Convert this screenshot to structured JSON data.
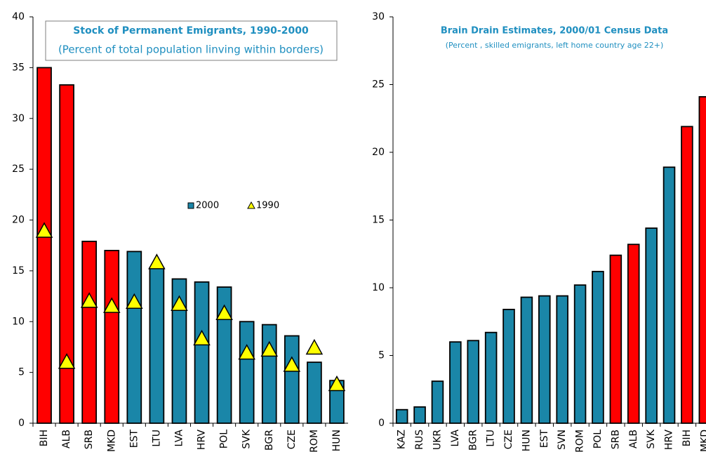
{
  "chart_data": [
    {
      "type": "bar",
      "title": "Stock of Permanent Emigrants, 1990-2000",
      "subtitle": "(Percent of total population linving within borders)",
      "categories": [
        "BIH",
        "ALB",
        "SRB",
        "MKD",
        "EST",
        "LTU",
        "LVA",
        "HRV",
        "POL",
        "SVK",
        "BGR",
        "CZE",
        "ROM",
        "HUN"
      ],
      "series": [
        {
          "name": "2000",
          "color": "#1a86a8",
          "colors": [
            "#ff0000",
            "#ff0000",
            "#ff0000",
            "#ff0000",
            "#1a86a8",
            "#1a86a8",
            "#1a86a8",
            "#1a86a8",
            "#1a86a8",
            "#1a86a8",
            "#1a86a8",
            "#1a86a8",
            "#1a86a8",
            "#1a86a8"
          ],
          "values": [
            35,
            33.3,
            17.9,
            17,
            16.9,
            15.3,
            14.2,
            13.9,
            13.4,
            10,
            9.7,
            8.6,
            6,
            4.2
          ]
        },
        {
          "name": "1990",
          "marker": "triangle",
          "color": "#ffff00",
          "values": [
            19,
            6.1,
            12.1,
            11.6,
            12,
            15.9,
            11.8,
            8.4,
            10.9,
            7,
            7.3,
            5.8,
            7.5,
            3.9
          ]
        }
      ],
      "ylim": [
        0,
        40
      ],
      "yticks": [
        0,
        5,
        10,
        15,
        20,
        25,
        30,
        35,
        40
      ],
      "grid": false,
      "legend": "center"
    },
    {
      "type": "bar",
      "title": "Brain Drain Estimates, 2000/01 Census Data",
      "subtitle": "(Percent , skilled emigrants, left home country age 22+)",
      "categories": [
        "KAZ",
        "RUS",
        "UKR",
        "LVA",
        "BGR",
        "LTU",
        "CZE",
        "HUN",
        "EST",
        "SVN",
        "ROM",
        "POL",
        "SRB",
        "ALB",
        "SVK",
        "HRV",
        "BIH",
        "MKD"
      ],
      "series": [
        {
          "color": "#1a86a8",
          "colors": [
            "#1a86a8",
            "#1a86a8",
            "#1a86a8",
            "#1a86a8",
            "#1a86a8",
            "#1a86a8",
            "#1a86a8",
            "#1a86a8",
            "#1a86a8",
            "#1a86a8",
            "#1a86a8",
            "#1a86a8",
            "#ff0000",
            "#ff0000",
            "#1a86a8",
            "#1a86a8",
            "#ff0000",
            "#ff0000"
          ],
          "values": [
            1.0,
            1.2,
            3.1,
            6.0,
            6.1,
            6.7,
            8.4,
            9.3,
            9.4,
            9.4,
            10.2,
            11.2,
            12.4,
            13.2,
            14.4,
            18.9,
            21.9,
            24.1
          ]
        }
      ],
      "ylim": [
        0,
        30
      ],
      "yticks": [
        0,
        5,
        10,
        15,
        20,
        25,
        30
      ],
      "grid": false
    }
  ]
}
